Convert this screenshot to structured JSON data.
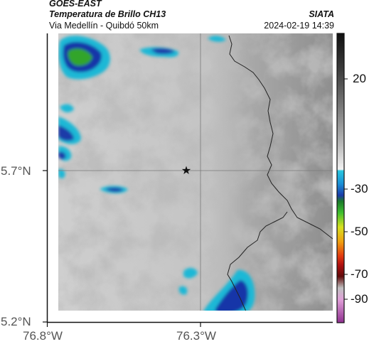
{
  "header": {
    "satellite": "GOES-EAST",
    "product": "Temperatura de Brillo CH13",
    "route": "Via Medellín - Quibdó 50km",
    "org": "SIATA",
    "timestamp": "2024-02-19 14:39"
  },
  "map": {
    "lon_ticks": [
      "76.8°W",
      "76.3°W"
    ],
    "lat_ticks": [
      "5.7°N",
      "5.2°N"
    ],
    "marker": "star-icon",
    "crosshair": true,
    "colors": {
      "cold_cloud_cyan": "#1fb8d6",
      "cold_cloud_blue": "#1736a8",
      "cold_cloud_green": "#33a52c",
      "warm_background": "#9c9c9c",
      "bright_cloud": "#e6e6e6",
      "border_line": "#222222"
    }
  },
  "colorbar": {
    "ticks": [
      "20",
      "-30",
      "-50",
      "-70",
      "-90"
    ]
  }
}
